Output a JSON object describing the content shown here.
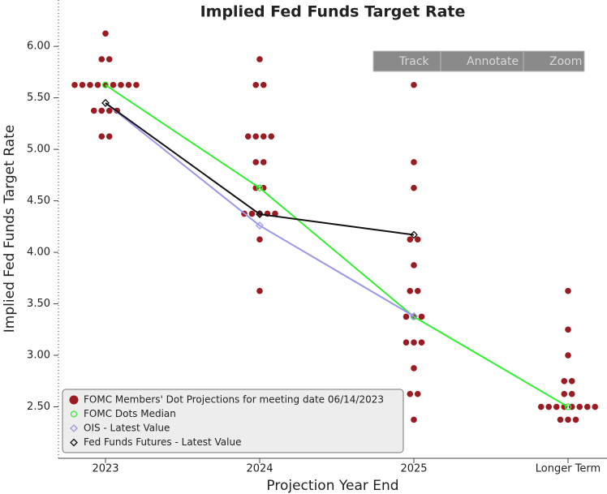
{
  "chart_data": {
    "type": "dot-plot",
    "title": "Implied Fed Funds Target Rate",
    "x_label": "Projection Year End",
    "y_label": "Implied Fed Funds Target Rate",
    "categories": [
      "2023",
      "2024",
      "2025",
      "Longer Term"
    ],
    "ylim": [
      2.0,
      6.45
    ],
    "yticks": [
      {
        "value": 2.5,
        "label": "2.50"
      },
      {
        "value": 3,
        "label": "3.00"
      },
      {
        "value": 3.5,
        "label": "3.50"
      },
      {
        "value": 4,
        "label": "4.00"
      },
      {
        "value": 4.5,
        "label": "4.50"
      },
      {
        "value": 5,
        "label": "5.00"
      },
      {
        "value": 5.5,
        "label": "5.50"
      },
      {
        "value": 6,
        "label": "6.00"
      }
    ],
    "legend": "lower left",
    "series": [
      {
        "name": "FOMC Members' Dot Projections for meeting date 06/14/2023",
        "color": "#9b1b23",
        "kind": "dots",
        "values": [
          [
            6.125,
            5.875,
            5.875,
            5.625,
            5.625,
            5.625,
            5.625,
            5.625,
            5.625,
            5.625,
            5.625,
            5.625,
            5.375,
            5.375,
            5.375,
            5.375,
            5.125,
            5.125
          ],
          [
            5.875,
            5.625,
            5.625,
            5.125,
            5.125,
            5.125,
            5.125,
            4.875,
            4.875,
            4.625,
            4.625,
            4.375,
            4.375,
            4.375,
            4.375,
            4.375,
            4.125,
            3.625
          ],
          [
            5.625,
            4.875,
            4.625,
            4.125,
            4.125,
            3.875,
            3.625,
            3.625,
            3.375,
            3.375,
            3.375,
            3.125,
            3.125,
            3.125,
            2.875,
            2.625,
            2.625,
            2.375
          ],
          [
            3.625,
            3.25,
            3.0,
            2.75,
            2.75,
            2.625,
            2.625,
            2.5,
            2.5,
            2.5,
            2.5,
            2.5,
            2.5,
            2.5,
            2.5,
            2.375,
            2.375,
            2.375
          ]
        ]
      },
      {
        "name": "FOMC Dots Median",
        "color": "#33ee33",
        "kind": "line",
        "marker": "circle",
        "values": [
          5.625,
          4.625,
          3.375,
          2.5
        ]
      },
      {
        "name": "OIS - Latest Value",
        "color": "#9a96e8",
        "kind": "line",
        "marker": "diamond",
        "values": [
          5.45,
          4.26,
          3.38,
          null
        ]
      },
      {
        "name": "Fed Funds Futures - Latest Value",
        "color": "#111111",
        "kind": "line",
        "marker": "diamond",
        "values": [
          5.45,
          4.37,
          4.17,
          null
        ]
      }
    ]
  },
  "toolbar": [
    "Track",
    "Annotate",
    "Zoom"
  ]
}
